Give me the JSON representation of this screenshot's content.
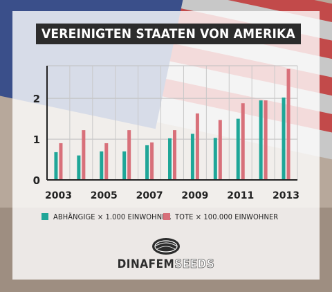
{
  "title": "VEREINIGTEN STAATEN VON AMERIKA",
  "legend": {
    "abhaengige": "ABHÄNGIGE × 1.000 EINWOHNER",
    "tote": "TOTE × 100.000 EINWOHNER"
  },
  "brand": {
    "part1": "DINAFEM",
    "part2": "SEEDS"
  },
  "colors": {
    "teal": "#1fa698",
    "pink": "#d8707a",
    "panel": "#ffffff",
    "title_bg": "#2c2c2c"
  },
  "chart_data": {
    "type": "bar",
    "categories": [
      "2003",
      "2004",
      "2005",
      "2006",
      "2007",
      "2008",
      "2009",
      "2010",
      "2011",
      "2012",
      "2013"
    ],
    "x_tick_labels": [
      "2003",
      "2005",
      "2007",
      "2009",
      "2011",
      "2013"
    ],
    "series": [
      {
        "name": "ABHÄNGIGE × 1.000 EINWOHNER",
        "color": "#1fa698",
        "values": [
          0.68,
          0.6,
          0.7,
          0.7,
          0.85,
          1.02,
          1.13,
          1.03,
          1.5,
          1.95,
          2.02
        ]
      },
      {
        "name": "TOTE × 100.000 EINWOHNER",
        "color": "#d8707a",
        "values": [
          0.9,
          1.22,
          0.9,
          1.22,
          0.92,
          1.22,
          1.63,
          1.47,
          1.88,
          1.95,
          2.72
        ]
      }
    ],
    "yticks": [
      0,
      1,
      2
    ],
    "ylim": [
      0,
      2.8
    ],
    "grid": true,
    "legend_position": "bottom"
  }
}
